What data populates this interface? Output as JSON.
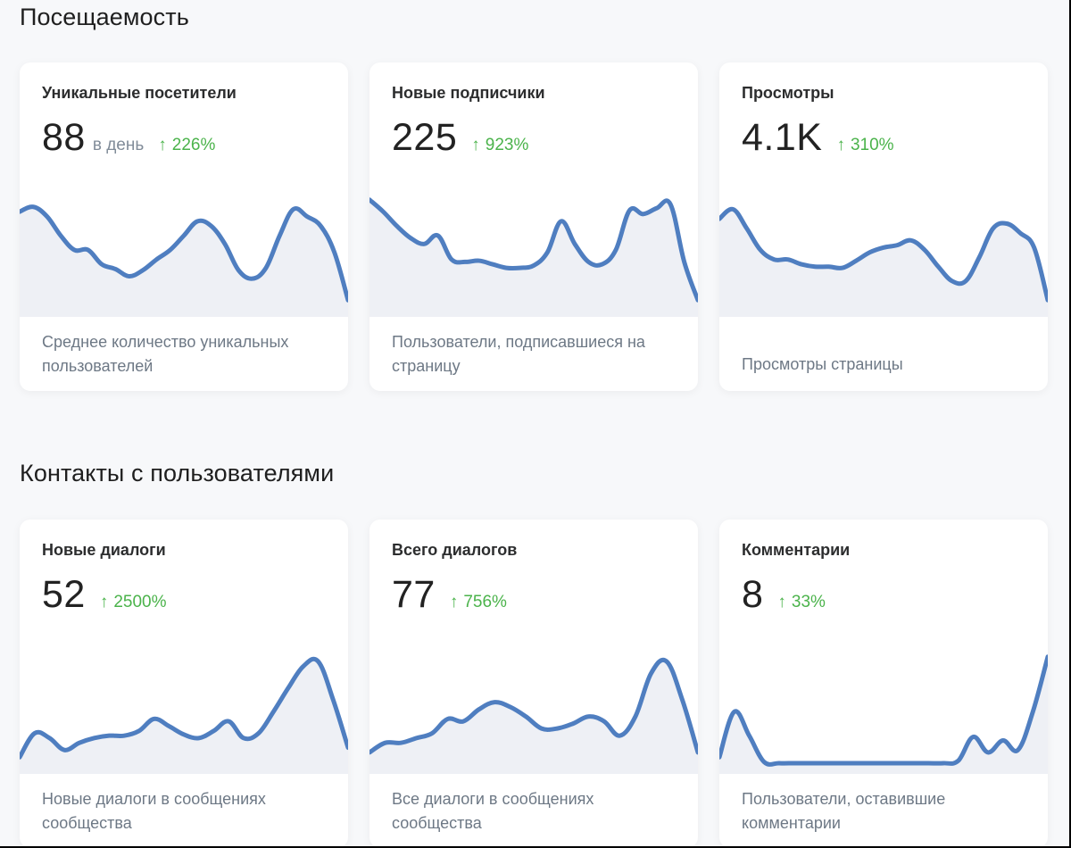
{
  "sections": [
    {
      "title": "Посещаемость"
    },
    {
      "title": "Контакты с пользователями"
    }
  ],
  "cards": [
    {
      "title": "Уникальные посетители",
      "value": "88",
      "unit": "в день",
      "delta": "226%",
      "description": "Среднее количество уникальных пользователей"
    },
    {
      "title": "Новые подписчики",
      "value": "225",
      "unit": "",
      "delta": "923%",
      "description": "Пользователи, подписавшиеся на страницу"
    },
    {
      "title": "Просмотры",
      "value": "4.1K",
      "unit": "",
      "delta": "310%",
      "description": "Просмотры страницы"
    },
    {
      "title": "Новые диалоги",
      "value": "52",
      "unit": "",
      "delta": "2500%",
      "description": "Новые диалоги в сообщениях сообщества"
    },
    {
      "title": "Всего диалогов",
      "value": "77",
      "unit": "",
      "delta": "756%",
      "description": "Все диалоги в сообщениях сообщества"
    },
    {
      "title": "Комментарии",
      "value": "8",
      "unit": "",
      "delta": "33%",
      "description": "Пользователи, оставившие комментарии"
    }
  ],
  "chart_data": [
    {
      "type": "area",
      "series": [
        {
          "values": [
            0.82,
            0.86,
            0.78,
            0.62,
            0.5,
            0.5,
            0.38,
            0.34,
            0.28,
            0.33,
            0.42,
            0.5,
            0.62,
            0.74,
            0.7,
            0.55,
            0.33,
            0.26,
            0.35,
            0.62,
            0.84,
            0.78,
            0.7,
            0.48,
            0.08
          ]
        }
      ]
    },
    {
      "type": "area",
      "series": [
        {
          "values": [
            0.92,
            0.82,
            0.7,
            0.6,
            0.55,
            0.62,
            0.42,
            0.4,
            0.41,
            0.38,
            0.35,
            0.35,
            0.37,
            0.48,
            0.74,
            0.55,
            0.4,
            0.38,
            0.5,
            0.83,
            0.8,
            0.85,
            0.88,
            0.4,
            0.08
          ]
        }
      ]
    },
    {
      "type": "area",
      "series": [
        {
          "values": [
            0.76,
            0.84,
            0.68,
            0.5,
            0.42,
            0.42,
            0.38,
            0.36,
            0.36,
            0.35,
            0.41,
            0.48,
            0.52,
            0.54,
            0.58,
            0.5,
            0.36,
            0.24,
            0.24,
            0.44,
            0.68,
            0.72,
            0.64,
            0.52,
            0.08
          ]
        }
      ]
    },
    {
      "type": "area",
      "series": [
        {
          "values": [
            0.08,
            0.28,
            0.24,
            0.14,
            0.2,
            0.24,
            0.26,
            0.26,
            0.3,
            0.4,
            0.34,
            0.27,
            0.24,
            0.3,
            0.38,
            0.24,
            0.28,
            0.46,
            0.66,
            0.84,
            0.88,
            0.56,
            0.16
          ]
        }
      ]
    },
    {
      "type": "area",
      "series": [
        {
          "values": [
            0.12,
            0.2,
            0.2,
            0.24,
            0.28,
            0.4,
            0.38,
            0.48,
            0.54,
            0.5,
            0.42,
            0.32,
            0.32,
            0.36,
            0.42,
            0.38,
            0.26,
            0.42,
            0.78,
            0.88,
            0.56,
            0.12
          ]
        }
      ]
    },
    {
      "type": "area",
      "series": [
        {
          "values": [
            0.08,
            0.46,
            0.26,
            0.04,
            0.03,
            0.03,
            0.03,
            0.03,
            0.03,
            0.03,
            0.03,
            0.03,
            0.03,
            0.03,
            0.03,
            0.03,
            0.05,
            0.25,
            0.12,
            0.22,
            0.14,
            0.46,
            0.92
          ]
        }
      ]
    }
  ],
  "colors": {
    "line": "#4f7ec0",
    "fill": "#eef0f5",
    "delta": "#4bb34b"
  }
}
